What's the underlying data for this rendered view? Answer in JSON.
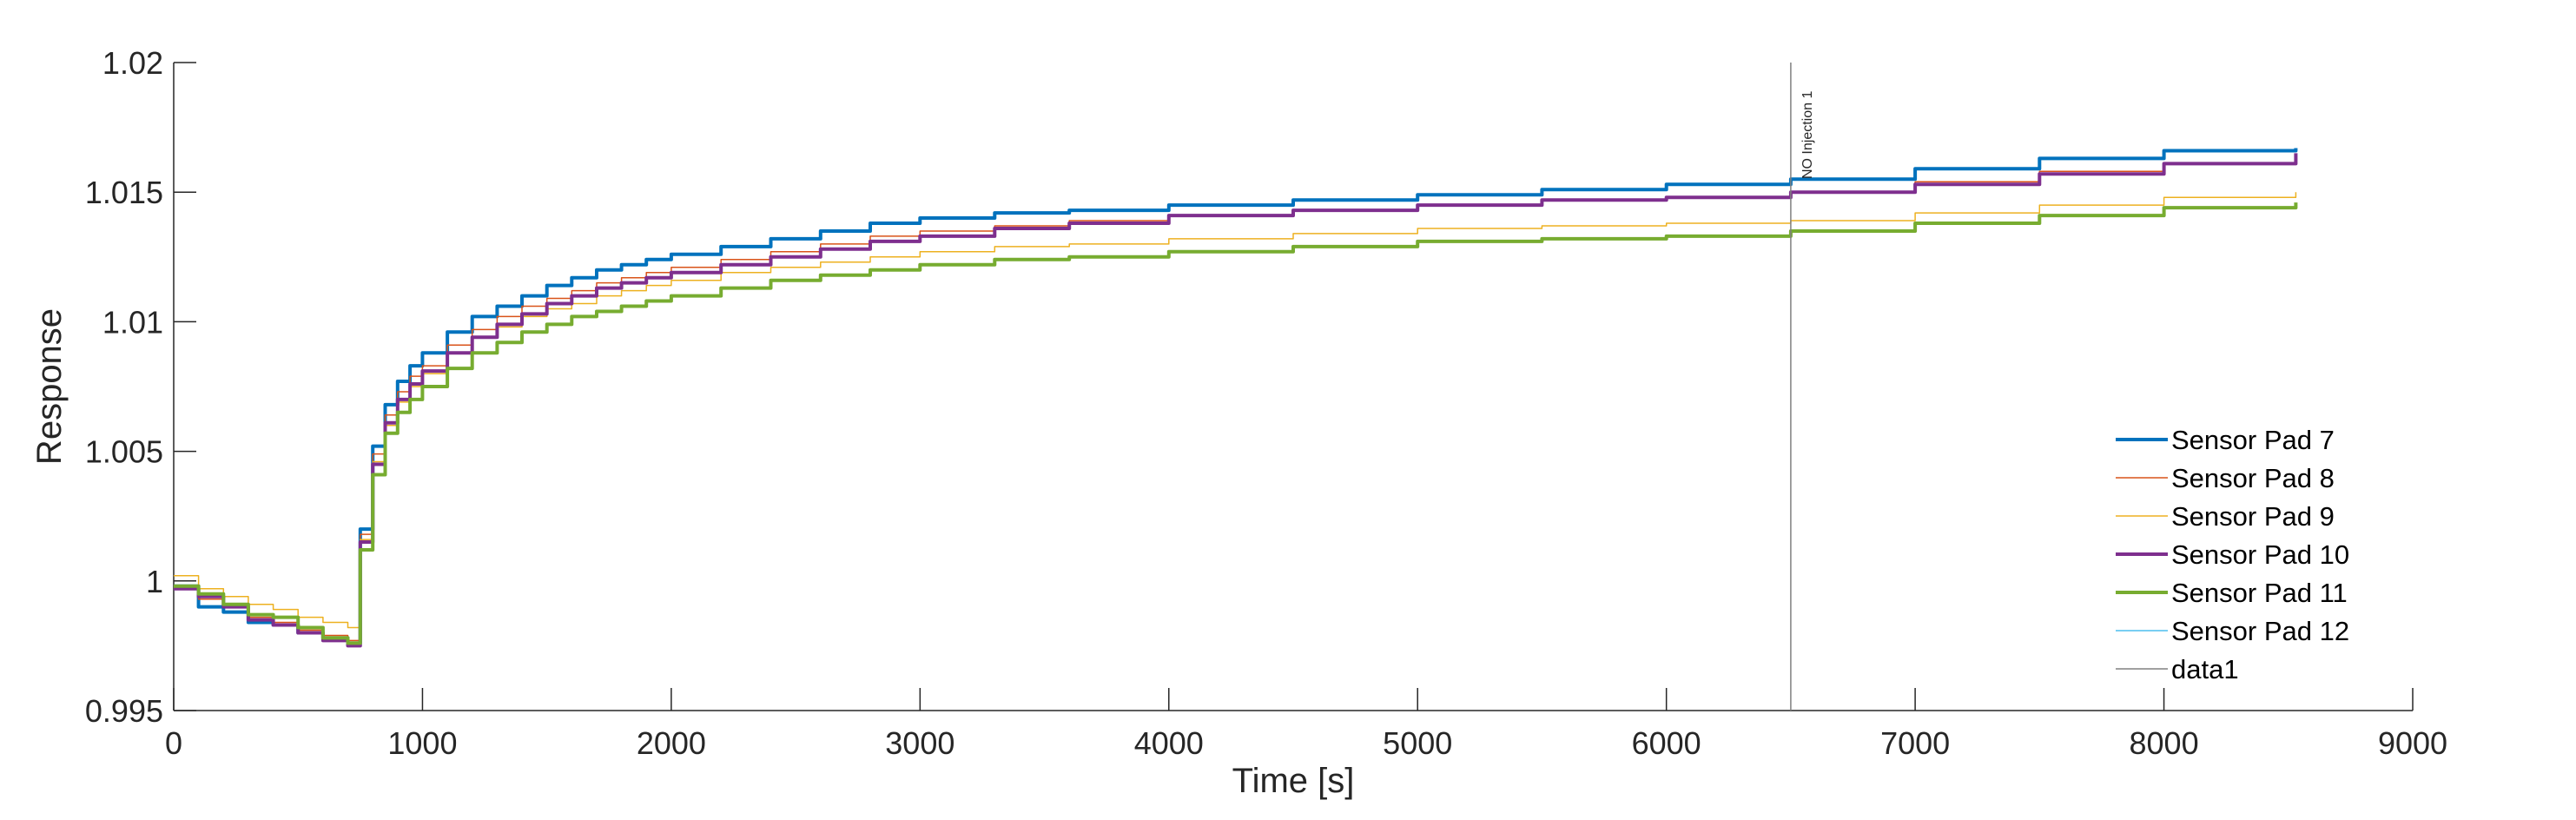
{
  "chart_data": {
    "type": "line",
    "title": "",
    "xlabel": "Time [s]",
    "ylabel": "Response",
    "xlim": [
      0,
      9000
    ],
    "ylim": [
      0.995,
      1.02
    ],
    "xticks": [
      0,
      1000,
      2000,
      3000,
      4000,
      5000,
      6000,
      7000,
      8000,
      9000
    ],
    "xtick_labels": [
      "0",
      "1000",
      "2000",
      "3000",
      "4000",
      "5000",
      "6000",
      "7000",
      "8000",
      "9000"
    ],
    "yticks": [
      0.995,
      1.0,
      1.005,
      1.01,
      1.015,
      1.02
    ],
    "ytick_labels": [
      "0.995",
      "1",
      "1.005",
      "1.01",
      "1.015",
      "1.02"
    ],
    "grid": false,
    "legend_position": "bottom-right",
    "annotation": {
      "x": 6500,
      "text": "NO Injection 1"
    },
    "series": [
      {
        "name": "Sensor Pad 7",
        "color": "#0072BD",
        "width": 4,
        "x": [
          0,
          100,
          200,
          300,
          400,
          500,
          600,
          700,
          750,
          800,
          850,
          900,
          950,
          1000,
          1100,
          1200,
          1300,
          1400,
          1500,
          1600,
          1700,
          1800,
          1900,
          2000,
          2200,
          2400,
          2600,
          2800,
          3000,
          3300,
          3600,
          4000,
          4500,
          5000,
          5500,
          6000,
          6500,
          7000,
          7500,
          8000,
          8530
        ],
        "y": [
          0.9998,
          0.999,
          0.9988,
          0.9984,
          0.9983,
          0.998,
          0.9978,
          0.9976,
          1.002,
          1.0052,
          1.0068,
          1.0077,
          1.0083,
          1.0088,
          1.0096,
          1.0102,
          1.0106,
          1.011,
          1.0114,
          1.0117,
          1.012,
          1.0122,
          1.0124,
          1.0126,
          1.0129,
          1.0132,
          1.0135,
          1.0138,
          1.014,
          1.0142,
          1.0143,
          1.0145,
          1.0147,
          1.0149,
          1.0151,
          1.0153,
          1.0155,
          1.0159,
          1.0163,
          1.0166,
          1.0167
        ]
      },
      {
        "name": "Sensor Pad 8",
        "color": "#D95319",
        "width": 1.5,
        "x": [
          0,
          100,
          200,
          300,
          400,
          500,
          600,
          700,
          750,
          800,
          850,
          900,
          950,
          1000,
          1100,
          1200,
          1300,
          1400,
          1500,
          1600,
          1700,
          1800,
          1900,
          2000,
          2200,
          2400,
          2600,
          2800,
          3000,
          3300,
          3600,
          4000,
          4500,
          5000,
          5500,
          6000,
          6500,
          7000,
          7500,
          8000,
          8530
        ],
        "y": [
          0.9997,
          0.9993,
          0.999,
          0.9986,
          0.9984,
          0.9981,
          0.9979,
          0.9977,
          1.0018,
          1.0049,
          1.0064,
          1.0073,
          1.0079,
          1.0083,
          1.0091,
          1.0097,
          1.0102,
          1.0106,
          1.0109,
          1.0112,
          1.0115,
          1.0117,
          1.0119,
          1.0121,
          1.0124,
          1.0127,
          1.013,
          1.0133,
          1.0135,
          1.0137,
          1.0139,
          1.0141,
          1.0143,
          1.0145,
          1.0147,
          1.0148,
          1.015,
          1.0154,
          1.0158,
          1.0161,
          1.0164
        ]
      },
      {
        "name": "Sensor Pad 9",
        "color": "#EDB120",
        "width": 1.5,
        "x": [
          0,
          100,
          200,
          300,
          400,
          500,
          600,
          700,
          750,
          800,
          850,
          900,
          950,
          1000,
          1100,
          1200,
          1300,
          1400,
          1500,
          1600,
          1700,
          1800,
          1900,
          2000,
          2200,
          2400,
          2600,
          2800,
          3000,
          3300,
          3600,
          4000,
          4500,
          5000,
          5500,
          6000,
          6500,
          7000,
          7500,
          8000,
          8530
        ],
        "y": [
          1.0002,
          0.9997,
          0.9994,
          0.9991,
          0.9989,
          0.9986,
          0.9984,
          0.9982,
          1.0016,
          1.0046,
          1.006,
          1.0069,
          1.0075,
          1.008,
          1.0088,
          1.0094,
          1.0098,
          1.0102,
          1.0105,
          1.0107,
          1.011,
          1.0112,
          1.0114,
          1.0116,
          1.0119,
          1.0121,
          1.0123,
          1.0125,
          1.0127,
          1.0129,
          1.013,
          1.0132,
          1.0134,
          1.0136,
          1.0137,
          1.0138,
          1.0139,
          1.0142,
          1.0145,
          1.0148,
          1.015
        ]
      },
      {
        "name": "Sensor Pad 10",
        "color": "#7E2F8E",
        "width": 4,
        "x": [
          0,
          100,
          200,
          300,
          400,
          500,
          600,
          700,
          750,
          800,
          850,
          900,
          950,
          1000,
          1100,
          1200,
          1300,
          1400,
          1500,
          1600,
          1700,
          1800,
          1900,
          2000,
          2200,
          2400,
          2600,
          2800,
          3000,
          3300,
          3600,
          4000,
          4500,
          5000,
          5500,
          6000,
          6500,
          7000,
          7500,
          8000,
          8530
        ],
        "y": [
          0.9997,
          0.9994,
          0.999,
          0.9985,
          0.9983,
          0.998,
          0.9977,
          0.9975,
          1.0015,
          1.0045,
          1.0061,
          1.007,
          1.0076,
          1.0081,
          1.0088,
          1.0094,
          1.0099,
          1.0103,
          1.0107,
          1.011,
          1.0113,
          1.0115,
          1.0117,
          1.0119,
          1.0122,
          1.0125,
          1.0128,
          1.0131,
          1.0133,
          1.0136,
          1.0138,
          1.0141,
          1.0143,
          1.0145,
          1.0147,
          1.0148,
          1.015,
          1.0153,
          1.0157,
          1.0161,
          1.0165
        ]
      },
      {
        "name": "Sensor Pad 11",
        "color": "#77AC30",
        "width": 4,
        "x": [
          0,
          100,
          200,
          300,
          400,
          500,
          600,
          700,
          750,
          800,
          850,
          900,
          950,
          1000,
          1100,
          1200,
          1300,
          1400,
          1500,
          1600,
          1700,
          1800,
          1900,
          2000,
          2200,
          2400,
          2600,
          2800,
          3000,
          3300,
          3600,
          4000,
          4500,
          5000,
          5500,
          6000,
          6500,
          7000,
          7500,
          8000,
          8530
        ],
        "y": [
          0.9998,
          0.9995,
          0.9991,
          0.9987,
          0.9986,
          0.9982,
          0.9978,
          0.9976,
          1.0012,
          1.0041,
          1.0057,
          1.0065,
          1.007,
          1.0075,
          1.0082,
          1.0088,
          1.0092,
          1.0096,
          1.0099,
          1.0102,
          1.0104,
          1.0106,
          1.0108,
          1.011,
          1.0113,
          1.0116,
          1.0118,
          1.012,
          1.0122,
          1.0124,
          1.0125,
          1.0127,
          1.0129,
          1.0131,
          1.0132,
          1.0133,
          1.0135,
          1.0138,
          1.0141,
          1.0144,
          1.0146
        ]
      },
      {
        "name": "Sensor Pad 12",
        "color": "#4DBEEE",
        "width": 1.5,
        "x": [],
        "y": []
      },
      {
        "name": "data1",
        "color": "#808080",
        "width": 1.5,
        "x": [
          6500,
          6500
        ],
        "y": [
          0.995,
          1.02
        ]
      }
    ]
  }
}
